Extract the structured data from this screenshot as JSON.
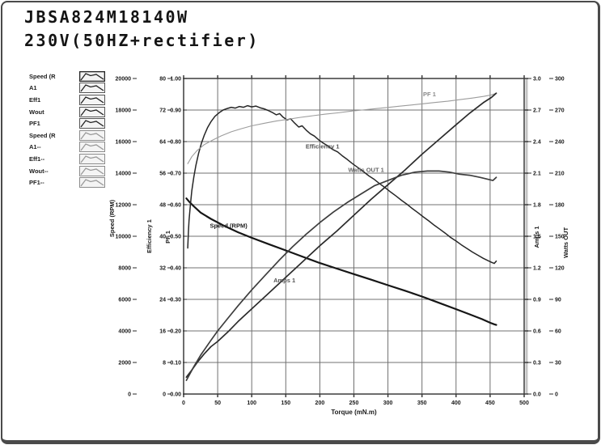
{
  "title": {
    "line1": "JBSA824M18140W",
    "line2": "230V(50HZ+rectifier)"
  },
  "legend": {
    "items": [
      {
        "label": "Speed (R",
        "shade": "dark"
      },
      {
        "label": "A1",
        "shade": "dark"
      },
      {
        "label": "Eff1",
        "shade": "dark"
      },
      {
        "label": "Wout",
        "shade": "dark"
      },
      {
        "label": "PF1",
        "shade": "dark"
      },
      {
        "label": "Speed (R",
        "shade": "light"
      },
      {
        "label": "A1--",
        "shade": "light"
      },
      {
        "label": "Eff1--",
        "shade": "light"
      },
      {
        "label": "Wout--",
        "shade": "light"
      },
      {
        "label": "PF1--",
        "shade": "light"
      }
    ]
  },
  "chart_data": {
    "type": "line",
    "title": "",
    "xlabel": "Torque (mN.m)",
    "x_max": 500,
    "x_ticks": [
      "0",
      "50",
      "100",
      "150",
      "200",
      "250",
      "300",
      "350",
      "400",
      "450",
      "500"
    ],
    "grid": true,
    "grid_color": "#707070",
    "axes": [
      {
        "id": "speed",
        "title": "Speed (RPM)",
        "side": "left",
        "max": 20000,
        "ticks": [
          "20000",
          "18000",
          "16000",
          "14000",
          "12000",
          "10000",
          "8000",
          "6000",
          "4000",
          "2000",
          "0"
        ]
      },
      {
        "id": "eff",
        "title": "Efficiency 1",
        "side": "left",
        "max": 80,
        "ticks": [
          "80",
          "72",
          "64",
          "56",
          "48",
          "40",
          "32",
          "24",
          "16",
          "8",
          "0"
        ]
      },
      {
        "id": "pf",
        "title": "PF 1",
        "side": "left",
        "max": 1,
        "ticks": [
          "1.00",
          "0.90",
          "0.80",
          "0.70",
          "0.60",
          "0.50",
          "0.40",
          "0.30",
          "0.20",
          "0.10",
          "0.00"
        ]
      },
      {
        "id": "amps",
        "title": "Amps 1",
        "side": "right",
        "max": 3,
        "ticks": [
          "3.0",
          "2.7",
          "2.4",
          "2.1",
          "1.8",
          "1.5",
          "1.2",
          "0.9",
          "0.6",
          "0.3",
          "0.0"
        ]
      },
      {
        "id": "watts",
        "title": "Watts OUT",
        "side": "right",
        "max": 300,
        "ticks": [
          "300",
          "270",
          "240",
          "210",
          "180",
          "150",
          "120",
          "90",
          "60",
          "30",
          "0"
        ]
      }
    ],
    "series": [
      {
        "name": "Speed (RPM)",
        "axis": "speed",
        "color": "#161616",
        "width": 2.2,
        "points": [
          [
            4,
            12400
          ],
          [
            8,
            12200
          ],
          [
            15,
            11900
          ],
          [
            25,
            11500
          ],
          [
            40,
            11100
          ],
          [
            60,
            10650
          ],
          [
            80,
            10250
          ],
          [
            100,
            9900
          ],
          [
            125,
            9500
          ],
          [
            150,
            9100
          ],
          [
            175,
            8700
          ],
          [
            200,
            8300
          ],
          [
            225,
            7950
          ],
          [
            250,
            7600
          ],
          [
            275,
            7250
          ],
          [
            300,
            6900
          ],
          [
            325,
            6550
          ],
          [
            350,
            6180
          ],
          [
            375,
            5780
          ],
          [
            400,
            5380
          ],
          [
            420,
            5050
          ],
          [
            438,
            4750
          ],
          [
            450,
            4520
          ],
          [
            456,
            4420
          ],
          [
            459,
            4380
          ]
        ]
      },
      {
        "name": "Efficiency 1",
        "axis": "eff",
        "color": "#262626",
        "width": 1.5,
        "points": [
          [
            6,
            37.0
          ],
          [
            7,
            41.0
          ],
          [
            8,
            44.0
          ],
          [
            10,
            48.0
          ],
          [
            12,
            51.5
          ],
          [
            15,
            55.0
          ],
          [
            18,
            58.0
          ],
          [
            22,
            61.0
          ],
          [
            26,
            63.5
          ],
          [
            30,
            65.5
          ],
          [
            35,
            67.5
          ],
          [
            40,
            69.0
          ],
          [
            46,
            70.4
          ],
          [
            52,
            71.3
          ],
          [
            58,
            72.0
          ],
          [
            64,
            72.4
          ],
          [
            70,
            72.7
          ],
          [
            76,
            72.5
          ],
          [
            82,
            72.9
          ],
          [
            88,
            72.7
          ],
          [
            94,
            73.1
          ],
          [
            100,
            72.8
          ],
          [
            106,
            73.0
          ],
          [
            112,
            72.6
          ],
          [
            118,
            72.3
          ],
          [
            124,
            71.9
          ],
          [
            130,
            71.4
          ],
          [
            136,
            70.8
          ],
          [
            141,
            71.1
          ],
          [
            146,
            70.2
          ],
          [
            152,
            69.5
          ],
          [
            157,
            69.8
          ],
          [
            163,
            68.7
          ],
          [
            169,
            67.7
          ],
          [
            174,
            68.0
          ],
          [
            180,
            66.9
          ],
          [
            186,
            66.0
          ],
          [
            192,
            65.4
          ],
          [
            198,
            64.5
          ],
          [
            205,
            63.6
          ],
          [
            212,
            62.9
          ],
          [
            219,
            62.0
          ],
          [
            226,
            61.4
          ],
          [
            233,
            60.4
          ],
          [
            240,
            59.5
          ],
          [
            248,
            58.4
          ],
          [
            256,
            57.4
          ],
          [
            264,
            56.4
          ],
          [
            272,
            55.3
          ],
          [
            280,
            54.4
          ],
          [
            288,
            53.3
          ],
          [
            296,
            52.3
          ],
          [
            304,
            51.2
          ],
          [
            312,
            50.2
          ],
          [
            320,
            49.1
          ],
          [
            328,
            48.1
          ],
          [
            336,
            47.0
          ],
          [
            344,
            46.0
          ],
          [
            352,
            44.9
          ],
          [
            360,
            43.9
          ],
          [
            368,
            42.8
          ],
          [
            376,
            41.8
          ],
          [
            384,
            40.8
          ],
          [
            392,
            39.7
          ],
          [
            400,
            38.8
          ],
          [
            408,
            37.8
          ],
          [
            416,
            36.9
          ],
          [
            424,
            36.0
          ],
          [
            432,
            35.2
          ],
          [
            440,
            34.4
          ],
          [
            447,
            33.8
          ],
          [
            452,
            33.4
          ],
          [
            456,
            33.1
          ],
          [
            459,
            33.7
          ]
        ]
      },
      {
        "name": "PF 1",
        "axis": "pf",
        "color": "#9c9c9c",
        "width": 1.1,
        "points": [
          [
            6,
            0.73
          ],
          [
            12,
            0.752
          ],
          [
            20,
            0.772
          ],
          [
            30,
            0.79
          ],
          [
            42,
            0.804
          ],
          [
            55,
            0.818
          ],
          [
            70,
            0.831
          ],
          [
            85,
            0.841
          ],
          [
            100,
            0.85
          ],
          [
            118,
            0.858
          ],
          [
            136,
            0.865
          ],
          [
            154,
            0.871
          ],
          [
            172,
            0.877
          ],
          [
            190,
            0.882
          ],
          [
            208,
            0.887
          ],
          [
            226,
            0.891
          ],
          [
            244,
            0.896
          ],
          [
            262,
            0.9
          ],
          [
            280,
            0.904
          ],
          [
            298,
            0.908
          ],
          [
            316,
            0.912
          ],
          [
            334,
            0.916
          ],
          [
            352,
            0.92
          ],
          [
            370,
            0.924
          ],
          [
            388,
            0.928
          ],
          [
            406,
            0.933
          ],
          [
            424,
            0.938
          ],
          [
            440,
            0.943
          ],
          [
            452,
            0.948
          ],
          [
            459,
            0.953
          ]
        ]
      },
      {
        "name": "Amps 1",
        "axis": "amps",
        "color": "#2b2b2b",
        "width": 1.7,
        "points": [
          [
            4,
            0.16
          ],
          [
            10,
            0.21
          ],
          [
            20,
            0.3
          ],
          [
            30,
            0.38
          ],
          [
            40,
            0.45
          ],
          [
            50,
            0.5
          ],
          [
            65,
            0.59
          ],
          [
            80,
            0.69
          ],
          [
            100,
            0.81
          ],
          [
            125,
            0.96
          ],
          [
            150,
            1.11
          ],
          [
            175,
            1.26
          ],
          [
            200,
            1.41
          ],
          [
            225,
            1.55
          ],
          [
            250,
            1.7
          ],
          [
            275,
            1.85
          ],
          [
            300,
            1.99
          ],
          [
            325,
            2.13
          ],
          [
            350,
            2.28
          ],
          [
            375,
            2.42
          ],
          [
            400,
            2.56
          ],
          [
            420,
            2.67
          ],
          [
            440,
            2.77
          ],
          [
            452,
            2.82
          ],
          [
            459,
            2.86
          ]
        ]
      },
      {
        "name": "Watts OUT 1",
        "axis": "watts",
        "color": "#3d3d3d",
        "width": 1.7,
        "points": [
          [
            4,
            13
          ],
          [
            15,
            26
          ],
          [
            25,
            37
          ],
          [
            40,
            51
          ],
          [
            50,
            60
          ],
          [
            65,
            72
          ],
          [
            80,
            84
          ],
          [
            100,
            99
          ],
          [
            120,
            113
          ],
          [
            140,
            127
          ],
          [
            160,
            140
          ],
          [
            180,
            152
          ],
          [
            200,
            163
          ],
          [
            220,
            173
          ],
          [
            240,
            182
          ],
          [
            260,
            190
          ],
          [
            280,
            198
          ],
          [
            300,
            203
          ],
          [
            320,
            208
          ],
          [
            340,
            211
          ],
          [
            358,
            212
          ],
          [
            375,
            212
          ],
          [
            390,
            211
          ],
          [
            405,
            209
          ],
          [
            420,
            208
          ],
          [
            435,
            206
          ],
          [
            448,
            204
          ],
          [
            454,
            203
          ],
          [
            459,
            206
          ]
        ]
      }
    ],
    "annotations": [
      {
        "text": "Speed (RPM)",
        "axis": "speed",
        "torque": 66,
        "value": 10550,
        "color": "#222222"
      },
      {
        "text": "Efficiency 1",
        "axis": "eff",
        "torque": 204,
        "value": 62.3,
        "color": "#555555"
      },
      {
        "text": "Amps 1",
        "axis": "amps",
        "torque": 148,
        "value": 1.06,
        "color": "#555555"
      },
      {
        "text": "Watts OUT 1",
        "axis": "watts",
        "torque": 268,
        "value": 211,
        "color": "#666666"
      },
      {
        "text": "PF 1",
        "axis": "pf",
        "torque": 361,
        "value": 0.944,
        "color": "#8a8a8a"
      }
    ]
  }
}
